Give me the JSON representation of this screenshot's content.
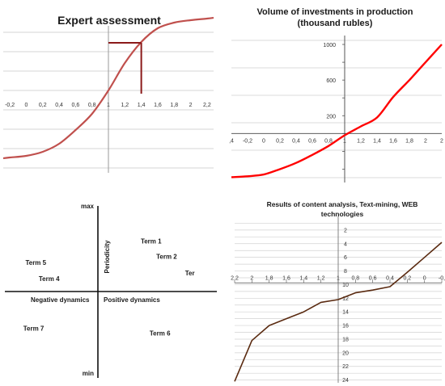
{
  "chart_data": [
    {
      "type": "line",
      "title": "Expert assessment",
      "x_tick_labels": [
        "-0,2",
        "0",
        "0,2",
        "0,4",
        "0,6",
        "0,8",
        "1",
        "1,2",
        "1,4",
        "1,6",
        "1,8",
        "2",
        "2,2"
      ],
      "xlim": [
        -0.28,
        2.28
      ],
      "ylim": [
        -1.0,
        1.0
      ],
      "grid": true,
      "series": [
        {
          "color": "#c0504d",
          "x": [
            -0.28,
            -0.2,
            0,
            0.2,
            0.4,
            0.6,
            0.8,
            1,
            1.2,
            1.4,
            1.6,
            1.8,
            2,
            2.2,
            2.28
          ],
          "y": [
            -0.82,
            -0.81,
            -0.79,
            -0.74,
            -0.64,
            -0.47,
            -0.27,
            0.02,
            0.36,
            0.62,
            0.79,
            0.86,
            0.89,
            0.91,
            0.92
          ]
        }
      ],
      "marker": {
        "x": 1.4,
        "y": 0.61,
        "color": "#8b1a1a"
      }
    },
    {
      "type": "line",
      "title": "Volume of investments in production",
      "subtitle": "(thousand rubles)",
      "x_tick_labels": [
        ",4",
        "-0,2",
        "0",
        "0,2",
        "0,4",
        "0,6",
        "0,8",
        "1",
        "1,2",
        "1,4",
        "1,6",
        "1,8",
        "2",
        "2"
      ],
      "y_tick_labels": [
        "1000",
        "600",
        "200"
      ],
      "y_tick_values": [
        1000,
        600,
        200
      ],
      "xlim": [
        -0.4,
        2.2
      ],
      "ylim": [
        -550,
        1100
      ],
      "grid": true,
      "series": [
        {
          "color": "#ff0000",
          "x": [
            -0.4,
            -0.2,
            0,
            0.2,
            0.4,
            0.6,
            0.8,
            1,
            1.2,
            1.4,
            1.6,
            1.8,
            2,
            2.2
          ],
          "y": [
            -490,
            -480,
            -460,
            -400,
            -330,
            -240,
            -140,
            -20,
            80,
            180,
            410,
            600,
            800,
            1000
          ]
        }
      ]
    },
    {
      "type": "scatter",
      "y_top_label": "max",
      "y_bottom_label": "min",
      "y_axis_label": "Periodicity",
      "x_axis_left_label": "Negative dynamics",
      "x_axis_right_label": "Positive dynamics",
      "points": [
        {
          "label": "Term 1",
          "x": 0.48,
          "y": 0.66
        },
        {
          "label": "Term 2",
          "x": 0.62,
          "y": 0.46
        },
        {
          "label": "Ter",
          "x": 0.83,
          "y": 0.24
        },
        {
          "label": "Term 5",
          "x": -0.56,
          "y": 0.38
        },
        {
          "label": "Term 4",
          "x": -0.44,
          "y": 0.17
        },
        {
          "label": "Term 7",
          "x": -0.58,
          "y": -0.48
        },
        {
          "label": "Term 6",
          "x": 0.56,
          "y": -0.54
        }
      ]
    },
    {
      "type": "line",
      "title": "Results of content analysis, Text-mining, WEB",
      "title_line2": "technologies",
      "x_tick_labels": [
        "2,2",
        "2",
        "1,8",
        "1,6",
        "1,4",
        "1,2",
        "1",
        "0,8",
        "0,6",
        "0,4",
        "0,2",
        "0",
        "-0,"
      ],
      "x_tick_values": [
        2.2,
        2,
        1.8,
        1.6,
        1.4,
        1.2,
        1,
        0.8,
        0.6,
        0.4,
        0.2,
        0,
        -0.2
      ],
      "y_tick_labels": [
        "2",
        "4",
        "6",
        "8",
        "10",
        "12",
        "14",
        "16",
        "18",
        "20",
        "22",
        "24"
      ],
      "y_tick_values": [
        2,
        4,
        6,
        8,
        10,
        12,
        14,
        16,
        18,
        20,
        22,
        24
      ],
      "xlim": [
        2.2,
        -0.2
      ],
      "ylim": [
        0,
        24.4
      ],
      "x_axis_position": 9.75,
      "grid": true,
      "series": [
        {
          "color": "#5a2a10",
          "x": [
            2.2,
            2,
            1.8,
            1.6,
            1.4,
            1.2,
            1,
            0.8,
            0.6,
            0.4,
            0.2,
            0,
            -0.2
          ],
          "y": [
            24.2,
            18.2,
            16,
            15,
            14,
            12.6,
            12.2,
            11.2,
            10.8,
            10.3,
            8.2,
            6,
            3.8
          ]
        }
      ]
    }
  ]
}
